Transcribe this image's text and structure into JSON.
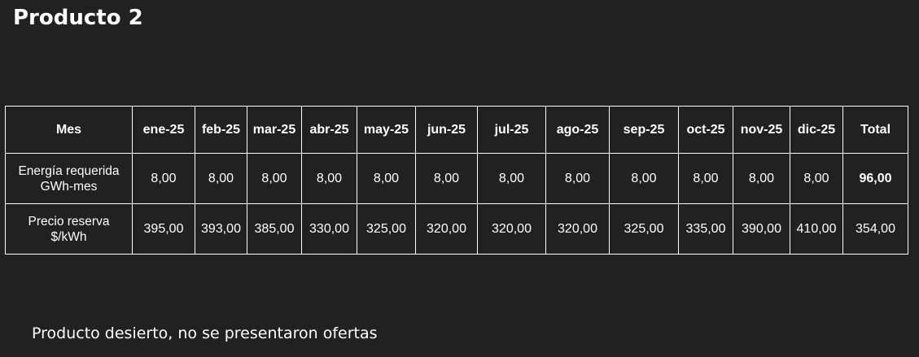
{
  "title": "Producto 2",
  "table": {
    "header": [
      "Mes",
      "ene-25",
      "feb-25",
      "mar-25",
      "abr-25",
      "may-25",
      "jun-25",
      "jul-25",
      "ago-25",
      "sep-25",
      "oct-25",
      "nov-25",
      "dic-25",
      "Total"
    ],
    "rows": [
      {
        "label_line1": "Energía requerida",
        "label_line2": "GWh-mes",
        "values": [
          "8,00",
          "8,00",
          "8,00",
          "8,00",
          "8,00",
          "8,00",
          "8,00",
          "8,00",
          "8,00",
          "8,00",
          "8,00",
          "8,00"
        ],
        "total": "96,00"
      },
      {
        "label_line1": "Precio reserva",
        "label_line2": "$/kWh",
        "values": [
          "395,00",
          "393,00",
          "385,00",
          "330,00",
          "325,00",
          "320,00",
          "320,00",
          "320,00",
          "325,00",
          "335,00",
          "390,00",
          "410,00"
        ],
        "total": "354,00"
      }
    ]
  },
  "note": "Producto desierto, no se presentaron ofertas"
}
